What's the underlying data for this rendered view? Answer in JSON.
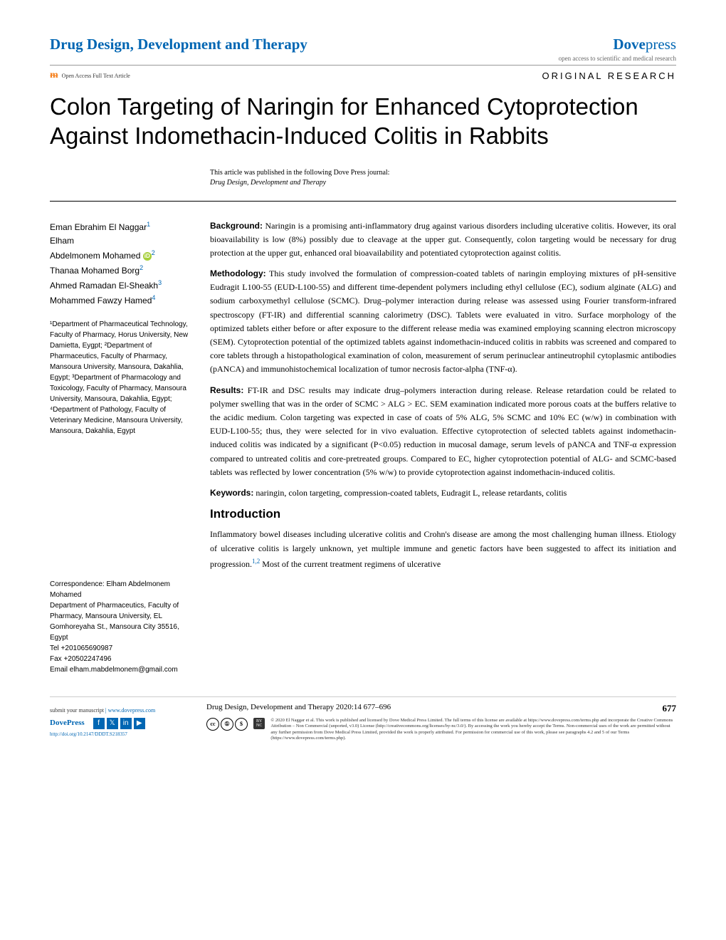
{
  "header": {
    "journal_name": "Drug Design, Development and Therapy",
    "brand_dove": "Dove",
    "brand_press": "press",
    "tagline": "open access to scientific and medical research"
  },
  "subheader": {
    "oa_text": "Open Access Full Text Article",
    "article_type": "ORIGINAL RESEARCH"
  },
  "title": "Colon Targeting of Naringin for Enhanced Cytoprotection Against Indomethacin-Induced Colitis in Rabbits",
  "pub_note": "This article was published in the following Dove Press journal:",
  "pub_journal": "Drug Design, Development and Therapy",
  "authors": [
    {
      "name": "Eman Ebrahim El Naggar",
      "sup": "1"
    },
    {
      "name": "Elham",
      "sup": ""
    },
    {
      "name": "Abdelmonem Mohamed",
      "sup": "2",
      "orcid": true
    },
    {
      "name": "Thanaa Mohamed Borg",
      "sup": "2"
    },
    {
      "name": "Ahmed Ramadan El-Sheakh",
      "sup": "3"
    },
    {
      "name": "Mohammed Fawzy Hamed",
      "sup": "4"
    }
  ],
  "affiliations": "¹Department of Pharmaceutical Technology, Faculty of Pharmacy, Horus University, New Damietta, Eygpt; ²Department of Pharmaceutics, Faculty of Pharmacy, Mansoura University, Mansoura, Dakahlia, Egypt; ³Department of Pharmacology and Toxicology, Faculty of Pharmacy, Mansoura University, Mansoura, Dakahlia, Egypt; ⁴Department of Pathology, Faculty of Veterinary Medicine, Mansoura University, Mansoura, Dakahlia, Egypt",
  "abstract": {
    "background_label": "Background:",
    "background": " Naringin is a promising anti-inflammatory drug against various disorders including ulcerative colitis. However, its oral bioavailability is low (8%) possibly due to cleavage at the upper gut. Consequently, colon targeting would be necessary for drug protection at the upper gut, enhanced oral bioavailability and potentiated cytoprotection against colitis.",
    "methodology_label": "Methodology:",
    "methodology": " This study involved the formulation of compression-coated tablets of naringin employing mixtures of pH-sensitive Eudragit L100-55 (EUD-L100-55) and different time-dependent polymers including ethyl cellulose (EC), sodium alginate (ALG) and sodium carboxymethyl cellulose (SCMC). Drug–polymer interaction during release was assessed using Fourier transform-infrared spectroscopy (FT-IR) and differential scanning calorimetry (DSC). Tablets were evaluated in vitro. Surface morphology of the optimized tablets either before or after exposure to the different release media was examined employing scanning electron microscopy (SEM). Cytoprotection potential of the optimized tablets against indomethacin-induced colitis in rabbits was screened and compared to core tablets through a histopathological examination of colon, measurement of serum perinuclear antineutrophil cytoplasmic antibodies (pANCA) and immunohistochemical localization of tumor necrosis factor-alpha (TNF-α).",
    "results_label": "Results:",
    "results": " FT-IR and DSC results may indicate drug–polymers interaction during release. Release retardation could be related to polymer swelling that was in the order of SCMC > ALG > EC. SEM examination indicated more porous coats at the buffers relative to the acidic medium. Colon targeting was expected in case of coats of 5% ALG, 5% SCMC and 10% EC (w/w) in combination with EUD-L100-55; thus, they were selected for in vivo evaluation. Effective cytoprotection of selected tablets against indomethacin-induced colitis was indicated by a significant (P<0.05) reduction in mucosal damage, serum levels of pANCA and TNF-α expression compared to untreated colitis and core-pretreated groups. Compared to EC, higher cytoprotection potential of ALG- and SCMC-based tablets was reflected by lower concentration (5% w/w) to provide cytoprotection against indomethacin-induced colitis.",
    "keywords_label": "Keywords:",
    "keywords": " naringin, colon targeting, compression-coated tablets, Eudragit L, release retardants, colitis"
  },
  "correspondence": {
    "label": "Correspondence: Elham Abdelmonem Mohamed",
    "address": "Department of Pharmaceutics, Faculty of Pharmacy, Mansoura University, EL Gomhoreyaha St., Mansoura City 35516, Egypt",
    "tel": "Tel +201065690987",
    "fax": "Fax +20502247496",
    "email": "Email elham.mabdelmonem@gmail.com"
  },
  "introduction": {
    "heading": "Introduction",
    "text_part1": "Inflammatory bowel diseases including ulcerative colitis and Crohn's disease are among the most challenging human illness. Etiology of ulcerative colitis is largely unknown, yet multiple immune and genetic factors have been suggested to affect its initiation and progression.",
    "ref": "1,2",
    "text_part2": " Most of the current treatment regimens of ulcerative"
  },
  "footer": {
    "submit_text": "submit your manuscript",
    "submit_url": " | www.dovepress.com",
    "dovepress": "DovePress",
    "doi": "http://doi.org/10.2147/DDDT.S218357",
    "citation": "Drug Design, Development and Therapy 2020:14 677–696",
    "page_num": "677",
    "license": "© 2020 El Naggar et al. This work is published and licensed by Dove Medical Press Limited. The full terms of this license are available at https://www.dovepress.com/terms.php and incorporate the Creative Commons Attribution – Non Commercial (unported, v3.0) License (http://creativecommons.org/licenses/by-nc/3.0/). By accessing the work you hereby accept the Terms. Non-commercial uses of the work are permitted without any further permission from Dove Medical Press Limited, provided the work is properly attributed. For permission for commercial use of this work, please see paragraphs 4.2 and 5 of our Terms (https://www.dovepress.com/terms.php)."
  }
}
